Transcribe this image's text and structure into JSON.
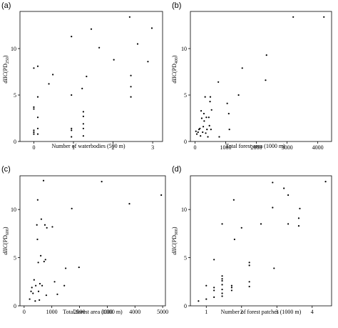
{
  "chart_data": [
    {
      "panel_label": "(a)",
      "type": "scatter",
      "xlabel": "Number of waterbodies (500 m)",
      "ylabel": "dIIC(PD250)",
      "xlim": [
        -0.35,
        3.25
      ],
      "ylim": [
        0,
        14
      ],
      "xticks": [
        0,
        1,
        2,
        3
      ],
      "yticks": [
        0,
        5,
        10
      ],
      "points": [
        [
          0,
          7.9
        ],
        [
          0,
          3.7
        ],
        [
          0,
          3.5
        ],
        [
          0,
          1.2
        ],
        [
          0,
          1.0
        ],
        [
          0,
          0.8
        ],
        [
          0.1,
          8.1
        ],
        [
          0.1,
          4.8
        ],
        [
          0.1,
          2.6
        ],
        [
          0.1,
          1.4
        ],
        [
          0.1,
          0.8
        ],
        [
          0.38,
          6.2
        ],
        [
          0.48,
          7.2
        ],
        [
          0.95,
          11.3
        ],
        [
          0.95,
          5.0
        ],
        [
          0.95,
          1.4
        ],
        [
          0.95,
          1.2
        ],
        [
          0.95,
          0.5
        ],
        [
          1.22,
          5.7
        ],
        [
          1.25,
          3.2
        ],
        [
          1.25,
          2.7
        ],
        [
          1.25,
          1.9
        ],
        [
          1.25,
          1.4
        ],
        [
          1.25,
          0.6
        ],
        [
          1.33,
          7.0
        ],
        [
          1.45,
          12.1
        ],
        [
          1.65,
          10.1
        ],
        [
          2.02,
          8.8
        ],
        [
          2.42,
          13.4
        ],
        [
          2.45,
          7.1
        ],
        [
          2.45,
          5.9
        ],
        [
          2.45,
          4.8
        ],
        [
          2.62,
          10.5
        ],
        [
          2.88,
          8.6
        ],
        [
          2.98,
          12.2
        ]
      ]
    },
    {
      "panel_label": "(b)",
      "type": "scatter",
      "xlabel": "Total forest area (1000 m)",
      "ylabel": "dIIC(PD400)",
      "xlim": [
        -150,
        4450
      ],
      "ylim": [
        0,
        14
      ],
      "xticks": [
        0,
        1000,
        2000,
        3000,
        4000
      ],
      "yticks": [
        0,
        5,
        10
      ],
      "points": [
        [
          30,
          1.1
        ],
        [
          60,
          0.8
        ],
        [
          100,
          1.0
        ],
        [
          130,
          1.3
        ],
        [
          160,
          1.4
        ],
        [
          180,
          0.6
        ],
        [
          200,
          3.3
        ],
        [
          220,
          2.5
        ],
        [
          250,
          1.0
        ],
        [
          270,
          1.6
        ],
        [
          290,
          3.0
        ],
        [
          300,
          2.2
        ],
        [
          330,
          4.8
        ],
        [
          350,
          0.9
        ],
        [
          370,
          2.6
        ],
        [
          390,
          1.3
        ],
        [
          420,
          0.5
        ],
        [
          450,
          2.6
        ],
        [
          470,
          1.7
        ],
        [
          490,
          4.3
        ],
        [
          500,
          4.8
        ],
        [
          520,
          1.3
        ],
        [
          540,
          3.4
        ],
        [
          760,
          6.4
        ],
        [
          790,
          0.5
        ],
        [
          1050,
          4.1
        ],
        [
          1100,
          3.0
        ],
        [
          1120,
          1.3
        ],
        [
          1420,
          5.0
        ],
        [
          1540,
          7.9
        ],
        [
          2300,
          6.6
        ],
        [
          2330,
          9.3
        ],
        [
          3200,
          13.4
        ],
        [
          4200,
          13.4
        ]
      ]
    },
    {
      "panel_label": "(c)",
      "type": "scatter",
      "xlabel": "Total forest area (1000 m)",
      "ylabel": "dIIC(PD600)",
      "xlim": [
        -150,
        5100
      ],
      "ylim": [
        0,
        13.5
      ],
      "xticks": [
        0,
        1000,
        2000,
        3000,
        4000,
        5000
      ],
      "yticks": [
        0,
        5,
        10
      ],
      "points": [
        [
          200,
          0.7
        ],
        [
          250,
          1.5
        ],
        [
          280,
          1.9
        ],
        [
          320,
          1.3
        ],
        [
          360,
          2.7
        ],
        [
          400,
          0.5
        ],
        [
          420,
          2.1
        ],
        [
          460,
          8.4
        ],
        [
          480,
          6.9
        ],
        [
          490,
          11.0
        ],
        [
          510,
          4.5
        ],
        [
          520,
          1.5
        ],
        [
          550,
          0.6
        ],
        [
          570,
          2.3
        ],
        [
          600,
          5.2
        ],
        [
          620,
          9.0
        ],
        [
          650,
          2.1
        ],
        [
          700,
          13.0
        ],
        [
          720,
          4.6
        ],
        [
          750,
          8.4
        ],
        [
          770,
          4.8
        ],
        [
          800,
          1.1
        ],
        [
          820,
          8.1
        ],
        [
          1020,
          8.2
        ],
        [
          1100,
          2.5
        ],
        [
          1200,
          1.2
        ],
        [
          1450,
          2.1
        ],
        [
          1500,
          3.9
        ],
        [
          1720,
          10.1
        ],
        [
          1980,
          4.0
        ],
        [
          2800,
          12.9
        ],
        [
          3800,
          10.6
        ],
        [
          4950,
          11.5
        ]
      ]
    },
    {
      "panel_label": "(d)",
      "type": "scatter",
      "xlabel": "Number of forest patches (1000 m)",
      "ylabel": "dIIC(PD900)",
      "xlim": [
        0.55,
        4.55
      ],
      "ylim": [
        0,
        13.5
      ],
      "xticks": [
        1,
        2,
        3,
        4
      ],
      "yticks": [
        0,
        5,
        10
      ],
      "points": [
        [
          0.78,
          0.5
        ],
        [
          1.0,
          0.7
        ],
        [
          1.0,
          2.1
        ],
        [
          1.22,
          1.9
        ],
        [
          1.22,
          1.6
        ],
        [
          1.22,
          4.8
        ],
        [
          1.22,
          0.9
        ],
        [
          1.45,
          8.5
        ],
        [
          1.45,
          3.1
        ],
        [
          1.45,
          2.8
        ],
        [
          1.45,
          2.6
        ],
        [
          1.45,
          2.2
        ],
        [
          1.45,
          1.7
        ],
        [
          1.45,
          1.3
        ],
        [
          1.45,
          1.0
        ],
        [
          1.72,
          2.1
        ],
        [
          1.72,
          1.9
        ],
        [
          1.72,
          1.6
        ],
        [
          1.78,
          11.0
        ],
        [
          1.8,
          6.9
        ],
        [
          2.0,
          8.1
        ],
        [
          2.22,
          4.5
        ],
        [
          2.22,
          4.2
        ],
        [
          2.22,
          2.5
        ],
        [
          2.22,
          2.0
        ],
        [
          2.55,
          8.5
        ],
        [
          2.88,
          12.8
        ],
        [
          2.88,
          10.2
        ],
        [
          2.92,
          3.9
        ],
        [
          3.2,
          12.2
        ],
        [
          3.32,
          11.5
        ],
        [
          3.32,
          8.5
        ],
        [
          3.62,
          9.1
        ],
        [
          3.62,
          8.3
        ],
        [
          3.65,
          10.1
        ],
        [
          4.38,
          12.9
        ]
      ]
    }
  ]
}
